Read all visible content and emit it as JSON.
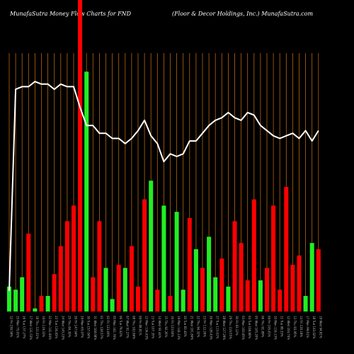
{
  "chart_data": {
    "type": "bar",
    "title": "MunafaSutra  Money Flow  Charts for FND",
    "subtitle": "(Floor & Decor Holdings, Inc.) MunafaSutra.com",
    "categories": [
      "12 Fri 230.58%",
      "15 Mon 75.91%",
      "16 Tue 137.27%",
      "17 Wed 131.53%",
      "18 Thu 121.01%",
      "19 Fri 119.33%",
      "22 Mon 141.84%",
      "23 Tue 130.83%",
      "24 Wed 145.23%",
      "25 Thu 84.30%",
      "26 Fri 147.94%",
      "29 Mon 65.97%",
      "30 Tue 157.04%",
      "31 Wed 168.08%",
      "01 Thu 128.57%",
      "02 Fri 123.40%",
      "05 Mon 161.76%",
      "06 Tue 79.02%",
      "07 Wed 91.27%",
      "08 Thu 102.96%",
      "09 Fri 88.81%",
      "12 Mon 134.63%",
      "13 Tue 107.35%",
      "14 Wed 93.44%",
      "15 Thu 92.26%",
      "16 Fri 123.60%",
      "19 Mon 144.13%",
      "20 Tue 83.40%",
      "21 Wed 101.84%",
      "22 Thu 94.32%",
      "23 Fri 112.26%",
      "26 Mon 128.43%",
      "27 Tue 113.61%",
      "28 Wed 127.29%",
      "29 Thu 119.55%",
      "30 Fri 83.12%",
      "03 Mon 103.85%",
      "04 Tue 108.80%",
      "05 Wed 105.20%",
      "06 Thu 91.89%",
      "09 Fri 105.81%",
      "10 Mon 116.13%",
      "11 Tue 99.33%",
      "12 Wed 104.74%",
      "13 Thu 93.95%",
      "14 Fri 120.18%",
      "17 Mon 99.61%",
      "18 Tue 143.02%",
      "19 Wed 94.81%"
    ],
    "flow_direction": [
      "green",
      "green",
      "green",
      "red",
      "green",
      "red",
      "green",
      "red",
      "red",
      "red",
      "red",
      "red",
      "green",
      "red",
      "red",
      "green",
      "green",
      "red",
      "green",
      "red",
      "red",
      "red",
      "green",
      "red",
      "green",
      "red",
      "green",
      "green",
      "red",
      "green",
      "red",
      "green",
      "green",
      "red",
      "green",
      "red",
      "red",
      "red",
      "red",
      "green",
      "red",
      "red",
      "red",
      "red",
      "red",
      "red",
      "green",
      "green",
      "red"
    ],
    "bar_heights": [
      8,
      7,
      11,
      25,
      1,
      5,
      5,
      12,
      21,
      29,
      34,
      100,
      77,
      11,
      29,
      14,
      4,
      15,
      14,
      21,
      8,
      36,
      42,
      7,
      34,
      5,
      32,
      7,
      30,
      20,
      14,
      24,
      11,
      17,
      8,
      29,
      22,
      10,
      36,
      10,
      14,
      34,
      7,
      40,
      15,
      18,
      5,
      22,
      20
    ],
    "price_line": [
      8,
      86,
      87,
      87,
      89,
      88,
      88,
      86,
      88,
      87,
      87,
      79,
      72,
      72,
      69,
      69,
      67,
      67,
      65,
      67,
      70,
      74,
      68,
      65,
      58,
      61,
      60,
      61,
      66,
      66,
      69,
      72,
      74,
      75,
      77,
      75,
      74,
      77,
      76,
      72,
      70,
      68,
      67,
      68,
      69,
      67,
      70,
      66,
      70
    ],
    "ylim": [
      0,
      100
    ],
    "colors": {
      "background": "#000000",
      "inflow": "#22ee22",
      "outflow": "#ff0000",
      "price_line": "#ffffff",
      "gridline": "#b8650f"
    }
  }
}
